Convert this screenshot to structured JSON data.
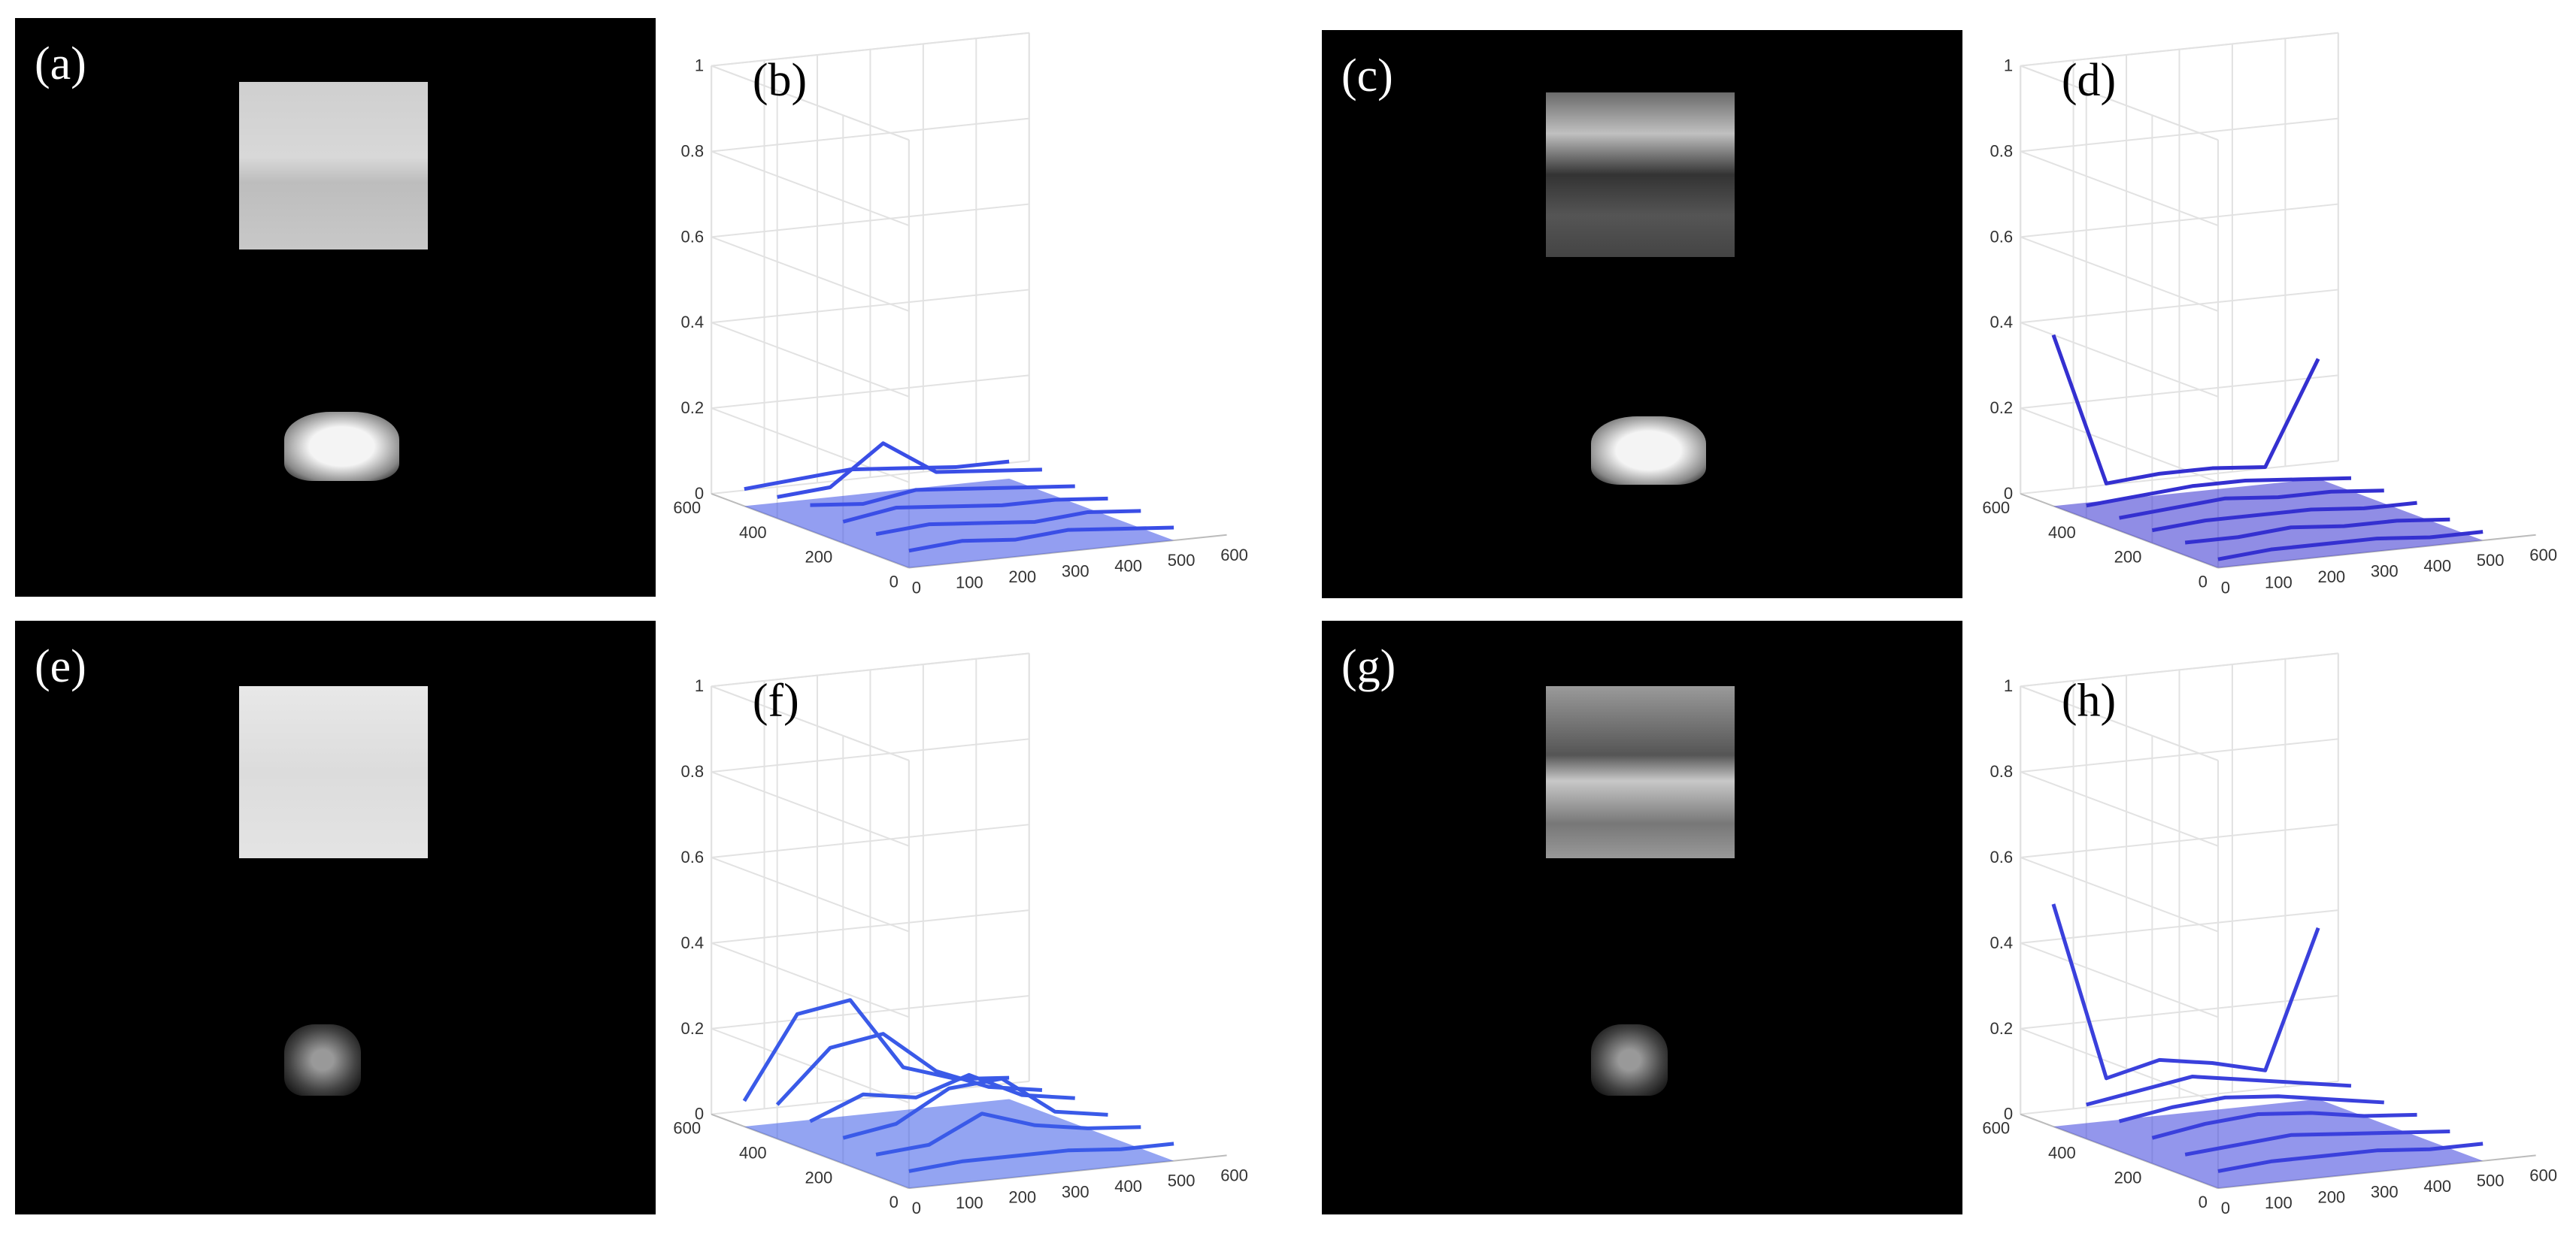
{
  "image_panels": [
    {
      "label": "(a)"
    },
    {
      "label": "(c)"
    },
    {
      "label": "(e)"
    },
    {
      "label": "(g)"
    }
  ],
  "chart_data": [
    {
      "type": "surface",
      "title": "(b)",
      "color": "#3a4ee6",
      "x": [
        0,
        100,
        200,
        300,
        400,
        500
      ],
      "y": [
        0,
        100,
        200,
        300,
        400,
        500
      ],
      "values": [
        [
          0.04,
          0.05,
          0.04,
          0.05,
          0.04,
          0.03
        ],
        [
          0.05,
          0.06,
          0.05,
          0.04,
          0.05,
          0.04
        ],
        [
          0.05,
          0.07,
          0.06,
          0.05,
          0.05,
          0.04
        ],
        [
          0.06,
          0.05,
          0.07,
          0.06,
          0.05,
          0.04
        ],
        [
          0.05,
          0.06,
          0.15,
          0.07,
          0.06,
          0.05
        ],
        [
          0.04,
          0.05,
          0.06,
          0.05,
          0.04,
          0.04
        ]
      ],
      "xlim": [
        0,
        600
      ],
      "ylim": [
        0,
        600
      ],
      "zlim": [
        0,
        1
      ],
      "xticks": [
        0,
        100,
        200,
        300,
        400,
        500,
        600
      ],
      "yticks": [
        0,
        200,
        400,
        600
      ],
      "zticks": [
        0,
        0.2,
        0.4,
        0.6,
        0.8,
        1
      ],
      "grid": true
    },
    {
      "type": "surface",
      "title": "(d)",
      "color": "#3430d0",
      "x": [
        0,
        100,
        200,
        300,
        400,
        500
      ],
      "y": [
        0,
        100,
        200,
        300,
        400,
        500
      ],
      "values": [
        [
          0.02,
          0.03,
          0.03,
          0.03,
          0.02,
          0.02
        ],
        [
          0.03,
          0.03,
          0.04,
          0.03,
          0.03,
          0.02
        ],
        [
          0.03,
          0.04,
          0.04,
          0.04,
          0.03,
          0.03
        ],
        [
          0.03,
          0.04,
          0.05,
          0.04,
          0.04,
          0.03
        ],
        [
          0.03,
          0.04,
          0.05,
          0.05,
          0.04,
          0.03
        ],
        [
          0.4,
          0.04,
          0.05,
          0.05,
          0.04,
          0.28
        ]
      ],
      "xlim": [
        0,
        600
      ],
      "ylim": [
        0,
        600
      ],
      "zlim": [
        0,
        1
      ],
      "xticks": [
        0,
        100,
        200,
        300,
        400,
        500,
        600
      ],
      "yticks": [
        0,
        200,
        400,
        600
      ],
      "zticks": [
        0,
        0.2,
        0.4,
        0.6,
        0.8,
        1
      ],
      "grid": true
    },
    {
      "type": "surface",
      "title": "(f)",
      "color": "#3a5ae8",
      "x": [
        0,
        100,
        200,
        300,
        400,
        500
      ],
      "y": [
        0,
        100,
        200,
        300,
        400,
        500
      ],
      "values": [
        [
          0.04,
          0.05,
          0.05,
          0.05,
          0.04,
          0.04
        ],
        [
          0.05,
          0.06,
          0.12,
          0.08,
          0.06,
          0.05
        ],
        [
          0.06,
          0.08,
          0.15,
          0.16,
          0.07,
          0.05
        ],
        [
          0.07,
          0.12,
          0.1,
          0.14,
          0.08,
          0.06
        ],
        [
          0.08,
          0.2,
          0.22,
          0.12,
          0.07,
          0.05
        ],
        [
          0.06,
          0.25,
          0.27,
          0.1,
          0.06,
          0.05
        ]
      ],
      "xlim": [
        0,
        600
      ],
      "ylim": [
        0,
        600
      ],
      "zlim": [
        0,
        1
      ],
      "xticks": [
        0,
        100,
        200,
        300,
        400,
        500,
        600
      ],
      "yticks": [
        0,
        200,
        400,
        600
      ],
      "zticks": [
        0,
        0.2,
        0.4,
        0.6,
        0.8,
        1
      ],
      "grid": true
    },
    {
      "type": "surface",
      "title": "(h)",
      "color": "#3a40dc",
      "x": [
        0,
        100,
        200,
        300,
        400,
        500
      ],
      "y": [
        0,
        100,
        200,
        300,
        400,
        500
      ],
      "values": [
        [
          0.04,
          0.05,
          0.05,
          0.05,
          0.04,
          0.04
        ],
        [
          0.05,
          0.06,
          0.07,
          0.06,
          0.05,
          0.04
        ],
        [
          0.06,
          0.08,
          0.09,
          0.08,
          0.06,
          0.05
        ],
        [
          0.07,
          0.09,
          0.1,
          0.09,
          0.07,
          0.05
        ],
        [
          0.08,
          0.1,
          0.12,
          0.1,
          0.08,
          0.06
        ],
        [
          0.52,
          0.1,
          0.13,
          0.11,
          0.08,
          0.4
        ]
      ],
      "xlim": [
        0,
        600
      ],
      "ylim": [
        0,
        600
      ],
      "zlim": [
        0,
        1
      ],
      "xticks": [
        0,
        100,
        200,
        300,
        400,
        500,
        600
      ],
      "yticks": [
        0,
        200,
        400,
        600
      ],
      "zticks": [
        0,
        0.2,
        0.4,
        0.6,
        0.8,
        1
      ],
      "grid": true
    }
  ]
}
